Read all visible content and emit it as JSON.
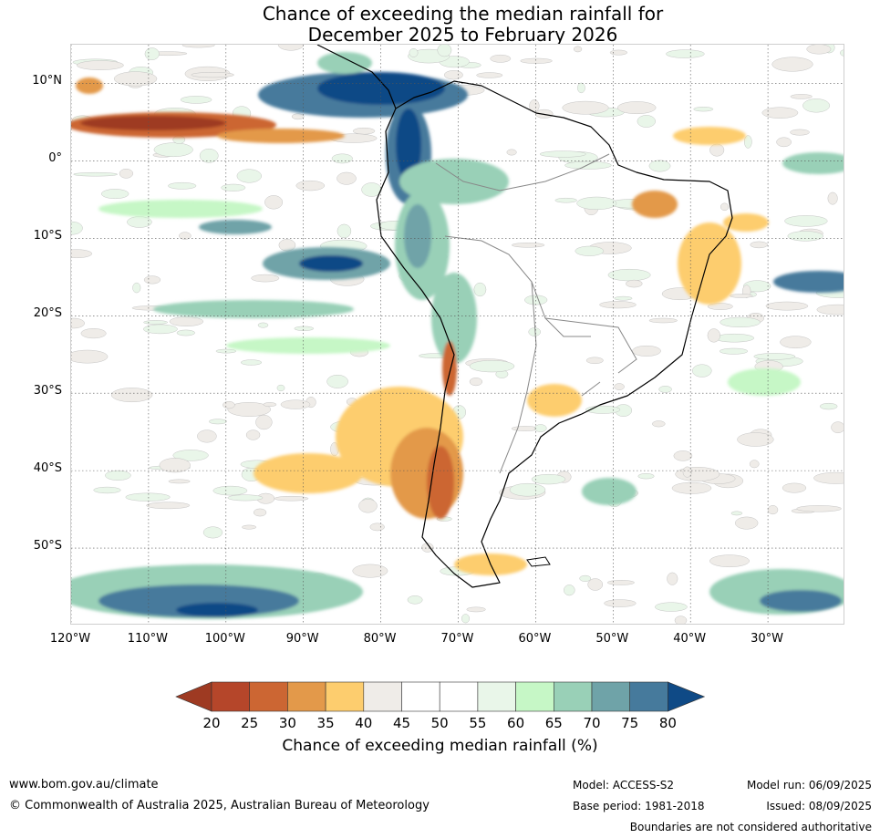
{
  "title": {
    "line1": "Chance of exceeding the median rainfall for",
    "line2": "December 2025 to February 2026"
  },
  "map": {
    "lon_range": [
      -120,
      -20
    ],
    "lat_range": [
      -60,
      15
    ],
    "lat_labels": [
      "10°N",
      "0°",
      "10°S",
      "20°S",
      "30°S",
      "40°S",
      "50°S"
    ],
    "lon_labels": [
      "120°W",
      "110°W",
      "100°W",
      "90°W",
      "80°W",
      "70°W",
      "60°W",
      "50°W",
      "40°W",
      "30°W"
    ]
  },
  "colorbar": {
    "label": "Chance of exceeding median rainfall (%)",
    "ticks": [
      "20",
      "25",
      "30",
      "35",
      "40",
      "45",
      "50",
      "55",
      "60",
      "65",
      "70",
      "75",
      "80"
    ],
    "colors": [
      "#9e3a22",
      "#b5462a",
      "#cc6633",
      "#e3994a",
      "#fdcd6e",
      "#efece8",
      "#ffffff",
      "#ffffff",
      "#e9f6e9",
      "#c6f7c6",
      "#99d0b7",
      "#6fa3a8",
      "#467a9c",
      "#0f4a86"
    ]
  },
  "footer": {
    "website": "www.bom.gov.au/climate",
    "copyright": "© Commonwealth of Australia 2025, Australian Bureau of Meteorology",
    "model": "Model: ACCESS-S2",
    "base_period": "Base period: 1981-2018",
    "model_run": "Model run: 06/09/2025",
    "issued": "Issued: 08/09/2025",
    "disclaimer": "Boundaries are not considered authoritative"
  }
}
